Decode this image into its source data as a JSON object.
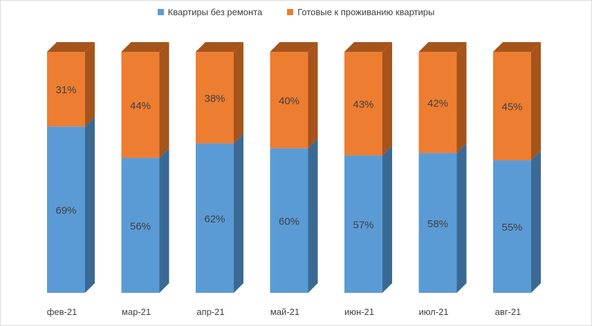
{
  "chart_data": {
    "type": "bar",
    "stacked": true,
    "percent_stacked": true,
    "three_d": true,
    "categories": [
      "фев-21",
      "мар-21",
      "апр-21",
      "май-21",
      "июн-21",
      "июл-21",
      "авг-21"
    ],
    "series": [
      {
        "name": "Квартиры без ремонта",
        "color": "#5b9bd5",
        "values": [
          69,
          56,
          62,
          60,
          57,
          58,
          55
        ],
        "labels": [
          "69%",
          "56%",
          "62%",
          "60%",
          "57%",
          "58%",
          "55%"
        ]
      },
      {
        "name": "Готовые к проживанию квартиры",
        "color": "#ed7d31",
        "values": [
          31,
          44,
          38,
          40,
          43,
          42,
          45
        ],
        "labels": [
          "31%",
          "44%",
          "38%",
          "40%",
          "43%",
          "42%",
          "45%"
        ]
      }
    ],
    "title": "",
    "xlabel": "",
    "ylabel": "",
    "ylim": [
      0,
      100
    ],
    "grid": false,
    "legend_position": "top"
  }
}
